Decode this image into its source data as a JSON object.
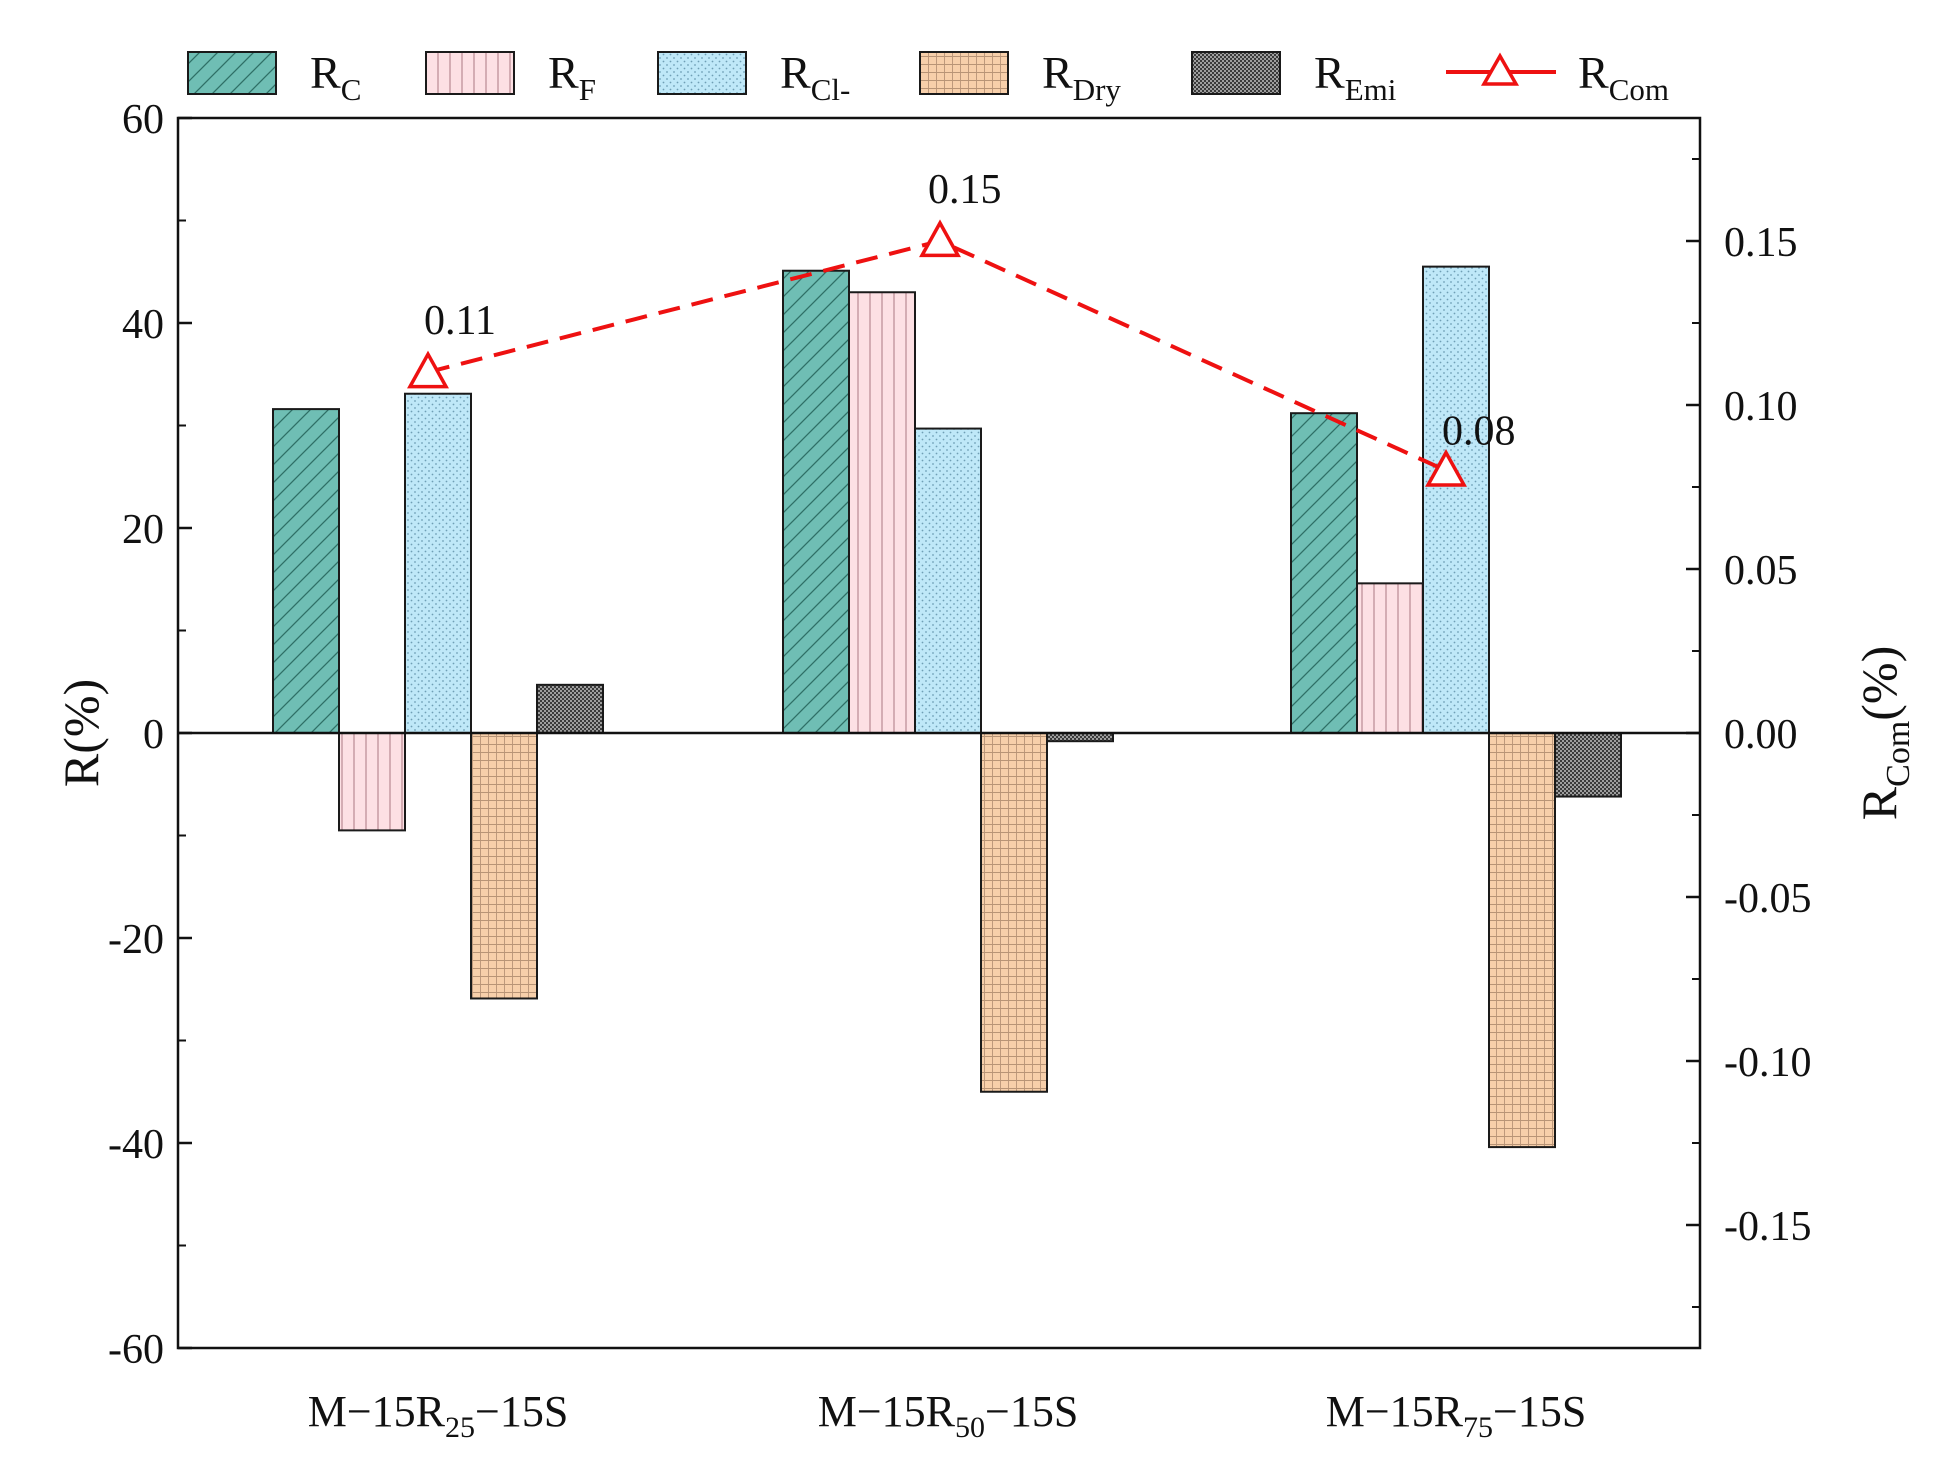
{
  "chart_data": {
    "type": "bar",
    "categories": [
      {
        "main": "M−15R",
        "sub": "25",
        "tail": "−15S"
      },
      {
        "main": "M−15R",
        "sub": "50",
        "tail": "−15S"
      },
      {
        "main": "M−15R",
        "sub": "75",
        "tail": "−15S"
      }
    ],
    "ylabel": "R(%)",
    "y2label": {
      "main": "R",
      "sub": "Com",
      "tail": "(%)"
    },
    "ylim": [
      -60,
      60
    ],
    "y2lim": [
      -0.1875,
      0.1875
    ],
    "yticks": [
      -60,
      -40,
      -20,
      0,
      20,
      40,
      60
    ],
    "y2ticks": [
      "-0.15",
      "-0.10",
      "-0.05",
      "0.00",
      "0.05",
      "0.10",
      "0.15"
    ],
    "series": [
      {
        "name": "R",
        "sub": "C",
        "pattern": "diag",
        "color": "#6fbeb4",
        "values": [
          31.6,
          45.1,
          31.2
        ]
      },
      {
        "name": "R",
        "sub": "F",
        "pattern": "vert",
        "color": "#fde0e4",
        "values": [
          -9.5,
          43.0,
          14.6
        ]
      },
      {
        "name": "R",
        "sub": "Cl-",
        "pattern": "dots",
        "color": "#bfe8f8",
        "values": [
          33.1,
          29.7,
          45.5
        ]
      },
      {
        "name": "R",
        "sub": "Dry",
        "pattern": "grid",
        "color": "#f7cfaa",
        "values": [
          -25.9,
          -35.0,
          -40.4
        ]
      },
      {
        "name": "R",
        "sub": "Emi",
        "pattern": "dense",
        "color": "#9e9e9e",
        "values": [
          4.7,
          -0.8,
          -6.2
        ]
      }
    ],
    "line": {
      "name": "R",
      "sub": "Com",
      "color": "#ee1111",
      "values": [
        0.11,
        0.15,
        0.08
      ],
      "labels": [
        "0.11",
        "0.15",
        "0.08"
      ]
    }
  }
}
